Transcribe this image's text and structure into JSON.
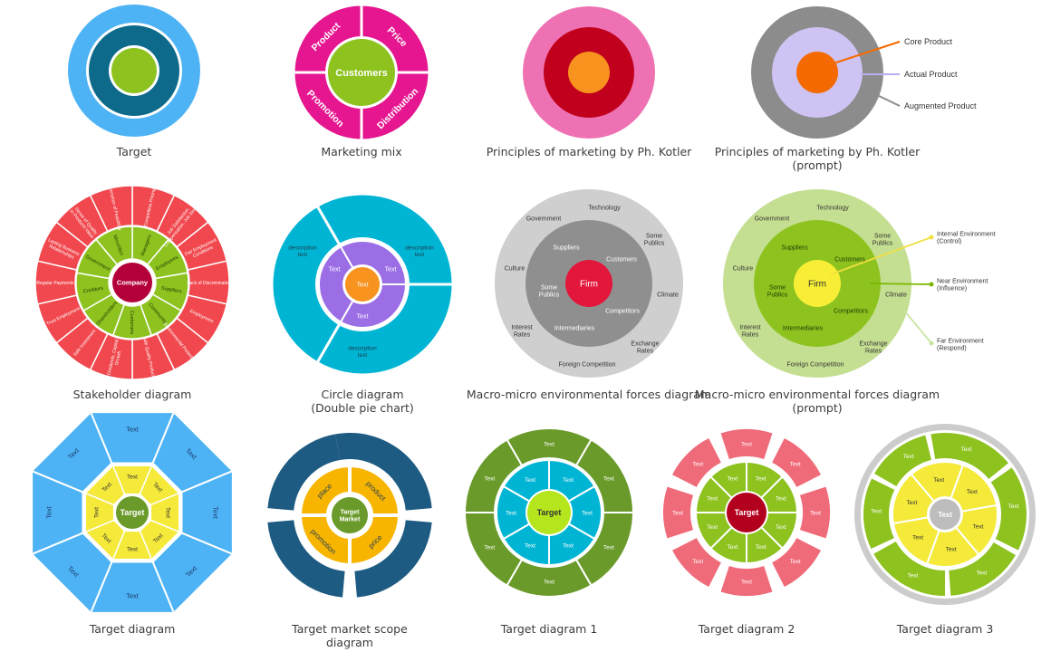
{
  "tiles": {
    "target": {
      "caption": [
        "Target"
      ]
    },
    "marketing_mix": {
      "caption": [
        "Marketing mix"
      ],
      "center": "Customers",
      "segments": [
        "Product",
        "Price",
        "Promotion",
        "Distribution"
      ]
    },
    "kotler": {
      "caption": [
        "Principles of marketing by Ph. Kotler"
      ]
    },
    "kotler_prompt": {
      "caption": [
        "Principles of marketing by Ph. Kotler",
        "(prompt)"
      ],
      "labels": [
        "Core Product",
        "Actual Product",
        "Augmented Product"
      ]
    },
    "stakeholder": {
      "caption": [
        "Stakeholder diagram"
      ],
      "center": "Company",
      "inner": [
        "Managers",
        "Employees",
        "Suppliers",
        "Community",
        "Customers",
        "Shareholders",
        "Creditors",
        "Government",
        "Minorities"
      ],
      "outer": [
        "Competitive Pricing",
        "Job Satisfaction, Compensation, Job Security",
        "Fair Employment Conditions",
        "Lack of Discrimination",
        "Employment",
        "Environmental Protection",
        "Safe Quality Products",
        "Dividends, Capital Growth",
        "Safe Investment",
        "Trust Employment",
        "Regular Payments",
        "Lasting Business Relationships",
        "Sense of Quality in Products Value",
        "Promotion of Feasibility"
      ]
    },
    "circle_diagram": {
      "caption": [
        "Circle diagram",
        "(Double pie chart)"
      ],
      "center": "Text",
      "inner": [
        "Text",
        "Text",
        "Text"
      ],
      "outer": [
        "description\ntext",
        "description\ntext",
        "description\ntext"
      ]
    },
    "macro_micro": {
      "caption": [
        "Macro-micro environmental forces diagram"
      ],
      "center": "Firm",
      "inner": [
        "Suppliers",
        "Customers",
        "Some\nPublics",
        "Competitors",
        "Intermediaries"
      ],
      "outer": [
        "Technology",
        "Government",
        "Some\nPublics",
        "Culture",
        "Climate",
        "Interest\nRates",
        "Exchange\nRates",
        "Foreign Competition"
      ]
    },
    "macro_micro_prompt": {
      "caption": [
        "Macro-micro environmental forces diagram",
        "(prompt)"
      ],
      "center": "Firm",
      "inner": [
        "Suppliers",
        "Customers",
        "Some\nPublics",
        "Competitors",
        "Intermediaries"
      ],
      "outer": [
        "Technology",
        "Government",
        "Some\nPublics",
        "Culture",
        "Climate",
        "Interest\nRates",
        "Exchange\nRates",
        "Foreign Competition"
      ],
      "callouts": [
        "Internal Environment\n(Control)",
        "Near Environment\n(Influence)",
        "Far Environment\n(Respond)"
      ]
    },
    "target_oct": {
      "caption": [
        "Target diagram"
      ],
      "center": "Target",
      "label": "Text"
    },
    "target_scope": {
      "caption": [
        "Target market scope",
        "diagram"
      ],
      "center": "Target\nMarket",
      "segments": [
        "place",
        "product",
        "promotion",
        "price"
      ]
    },
    "target1": {
      "caption": [
        "Target diagram 1"
      ],
      "center": "Target",
      "label": "Text"
    },
    "target2": {
      "caption": [
        "Target diagram 2"
      ],
      "center": "Target",
      "label": "Text"
    },
    "target3": {
      "caption": [
        "Target diagram 3"
      ],
      "center": "Text",
      "label": "Text"
    }
  },
  "colors": {
    "sky": "#4db3f5",
    "teal_dark": "#0e6a8a",
    "lime": "#8dc21f",
    "magenta": "#e5168f",
    "pink": "#ee72b3",
    "crimson": "#c1001d",
    "orange": "#f7931e",
    "gray": "#8c8c8c",
    "red": "#f0484e",
    "cyan": "#00b5d4",
    "purple": "#9b6ee6",
    "navy": "#1e5b82",
    "gold": "#f7b500",
    "olive": "#6a9a2a",
    "yellow": "#f5e93a",
    "salmon": "#f06b7a"
  }
}
